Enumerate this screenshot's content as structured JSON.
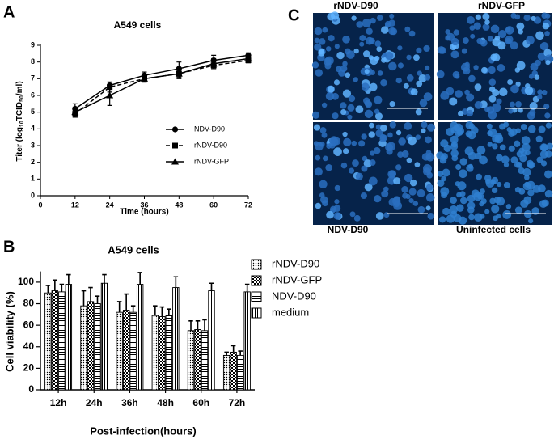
{
  "panel_labels": [
    "A",
    "B",
    "C"
  ],
  "chart_data": [
    {
      "type": "line",
      "title": "A549 cells",
      "xlabel": "Time (hours)",
      "ylabel": [
        "Titer (log",
        "10",
        "TCID",
        "50",
        "/ml)"
      ],
      "x": [
        12,
        24,
        36,
        48,
        60,
        72
      ],
      "xlim": [
        0,
        72
      ],
      "xticks": [
        0,
        12,
        24,
        36,
        48,
        60,
        72
      ],
      "ylim": [
        0,
        9
      ],
      "yticks": [
        0,
        1,
        2,
        3,
        4,
        5,
        6,
        7,
        8,
        9
      ],
      "series": [
        {
          "name": "NDV-D90",
          "color": "#000000",
          "marker": "circle",
          "linestyle": "solid",
          "values": [
            5.2,
            6.6,
            7.2,
            7.6,
            8.1,
            8.4
          ],
          "errors": [
            0.3,
            0.2,
            0.2,
            0.4,
            0.3,
            0.15
          ]
        },
        {
          "name": "rNDV-D90",
          "color": "#000000",
          "marker": "square",
          "linestyle": "dashed",
          "values": [
            4.9,
            6.5,
            7.0,
            7.3,
            7.8,
            8.1
          ],
          "errors": [
            0.2,
            0.3,
            0.2,
            0.2,
            0.2,
            0.15
          ]
        },
        {
          "name": "rNDV-GFP",
          "color": "#000000",
          "marker": "triangle",
          "linestyle": "solid",
          "values": [
            5.0,
            6.0,
            7.0,
            7.3,
            7.9,
            8.2
          ],
          "errors": [
            0.3,
            0.6,
            0.2,
            0.3,
            0.3,
            0.2
          ]
        }
      ]
    },
    {
      "type": "bar",
      "title": "A549 cells",
      "xlabel": "Post-infection(hours)",
      "ylabel": "Cell viability (%)",
      "categories": [
        "12h",
        "24h",
        "36h",
        "48h",
        "60h",
        "72h"
      ],
      "ylim": [
        0,
        110
      ],
      "yticks": [
        0,
        20,
        40,
        60,
        80,
        100
      ],
      "series": [
        {
          "name": "rNDV-D90",
          "color": "#000000",
          "pattern": "dots",
          "values": [
            90,
            78,
            72,
            69,
            55,
            32
          ],
          "errors": [
            7,
            14,
            10,
            9,
            9,
            3
          ]
        },
        {
          "name": "rNDV-GFP",
          "color": "#000000",
          "pattern": "checker",
          "values": [
            92,
            82,
            74,
            68,
            56,
            35
          ],
          "errors": [
            10,
            13,
            15,
            9,
            8,
            6
          ]
        },
        {
          "name": "NDV-D90",
          "color": "#000000",
          "pattern": "hstripes",
          "values": [
            91,
            80,
            72,
            69,
            55,
            32
          ],
          "errors": [
            7,
            7,
            6,
            6,
            10,
            4
          ]
        },
        {
          "name": "medium",
          "color": "#000000",
          "pattern": "vstripes",
          "values": [
            98,
            99,
            98,
            95,
            92,
            91
          ],
          "errors": [
            9,
            8,
            11,
            10,
            7,
            7
          ]
        }
      ]
    }
  ],
  "micrographs": {
    "labels": [
      "rNDV-D90",
      "rNDV-GFP",
      "NDV-D90",
      "Uninfected cells"
    ]
  }
}
